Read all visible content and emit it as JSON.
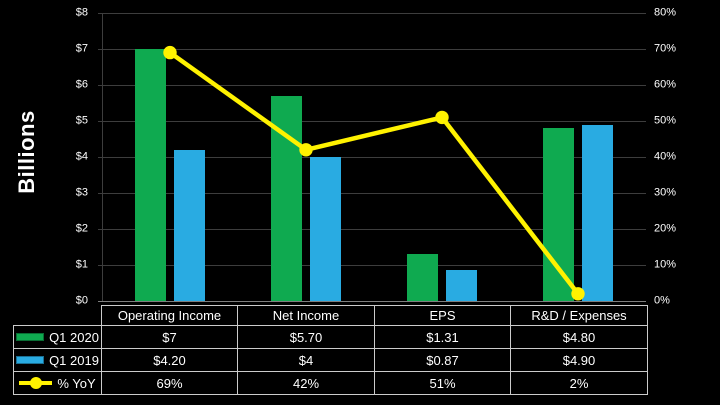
{
  "chart_data": {
    "type": "combo-bar-line",
    "categories": [
      "Operating Income",
      "Net Income",
      "EPS",
      "R&D / Expenses"
    ],
    "series": [
      {
        "name": "Q1 2020",
        "type": "bar",
        "color": "#0FAA50",
        "axis": "left",
        "values": [
          7,
          5.7,
          1.31,
          4.8
        ],
        "display_labels": [
          "$7",
          "$5.70",
          "$1.31",
          "$4.80"
        ]
      },
      {
        "name": "Q1 2019",
        "type": "bar",
        "color": "#29ABE2",
        "axis": "left",
        "values": [
          4.2,
          4,
          0.87,
          4.9
        ],
        "display_labels": [
          "$4.20",
          "$4",
          "$0.87",
          "$4.90"
        ]
      },
      {
        "name": "% YoY",
        "type": "line",
        "color": "#FFF200",
        "axis": "right",
        "values": [
          69,
          42,
          51,
          2
        ],
        "display_labels": [
          "69%",
          "42%",
          "51%",
          "2%"
        ]
      }
    ],
    "left_axis": {
      "title": "Billions",
      "min": 0,
      "max": 8,
      "step": 1,
      "tick_labels": [
        "$0",
        "$1",
        "$2",
        "$3",
        "$4",
        "$5",
        "$6",
        "$7",
        "$8"
      ]
    },
    "right_axis": {
      "min": 0,
      "max": 80,
      "step": 10,
      "tick_labels": [
        "0%",
        "10%",
        "20%",
        "30%",
        "40%",
        "50%",
        "60%",
        "70%",
        "80%"
      ]
    },
    "grid": true,
    "legend_position": "table-left",
    "colors": {
      "background": "#000000",
      "gridline": "#3D3D3D",
      "baseline": "#7F7F7F",
      "table_border": "#CBCBCB",
      "text": "#FFFFFF"
    }
  }
}
